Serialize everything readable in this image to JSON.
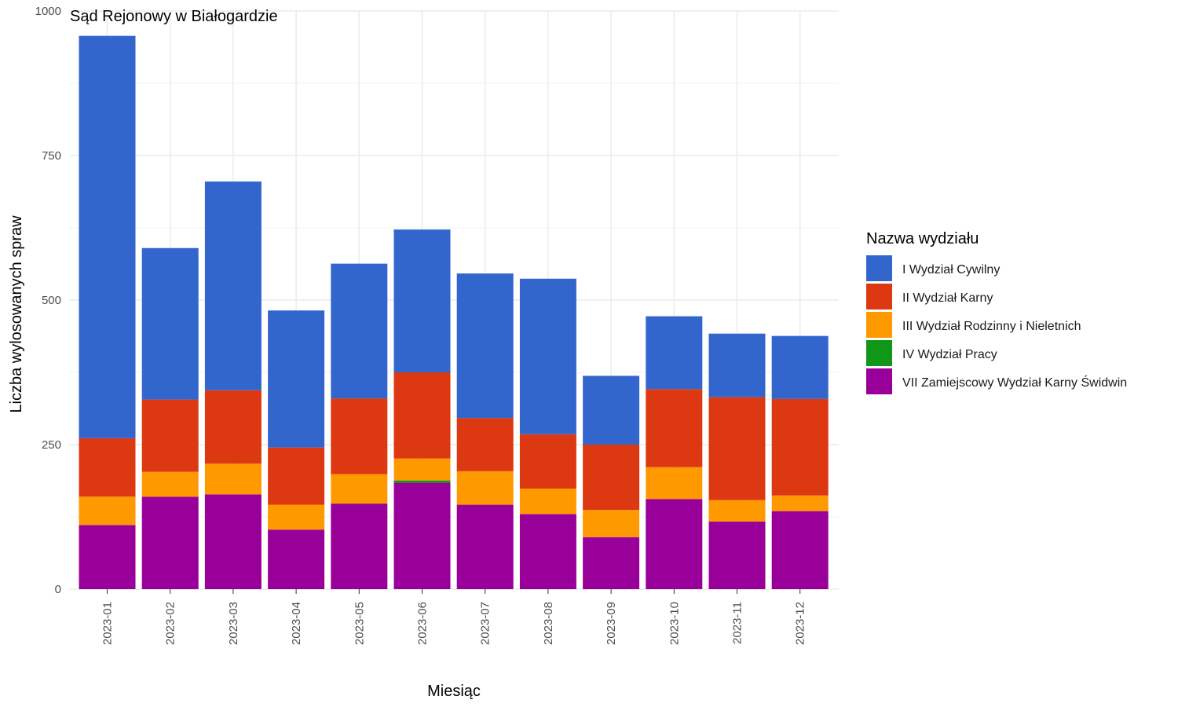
{
  "chart_data": {
    "type": "bar",
    "stacked": true,
    "title": "Sąd Rejonowy w Białogardzie",
    "xlabel": "Miesiąc",
    "ylabel": "Liczba wylosowanych spraw",
    "ylim": [
      0,
      1000
    ],
    "yticks": [
      0,
      250,
      500,
      750,
      1000
    ],
    "grid": true,
    "legend_title": "Nazwa wydziału",
    "legend_position": "right",
    "categories": [
      "2023-01",
      "2023-02",
      "2023-03",
      "2023-04",
      "2023-05",
      "2023-06",
      "2023-07",
      "2023-08",
      "2023-09",
      "2023-10",
      "2023-11",
      "2023-12"
    ],
    "series": [
      {
        "name": "VII Zamiejscowy Wydział Karny Świdwin",
        "color": "#990099",
        "values": [
          111,
          160,
          164,
          103,
          148,
          184,
          146,
          130,
          90,
          156,
          117,
          135
        ]
      },
      {
        "name": "IV Wydział Pracy",
        "color": "#109618",
        "values": [
          0,
          0,
          0,
          0,
          0,
          4,
          0,
          0,
          0,
          0,
          0,
          0
        ]
      },
      {
        "name": "III Wydział Rodzinny i Nieletnich",
        "color": "#FF9900",
        "values": [
          49,
          43,
          53,
          43,
          51,
          38,
          58,
          44,
          47,
          55,
          37,
          27
        ]
      },
      {
        "name": "II Wydział Karny",
        "color": "#DC3912",
        "values": [
          101,
          125,
          127,
          99,
          131,
          149,
          92,
          94,
          113,
          135,
          178,
          167
        ]
      },
      {
        "name": "I Wydział Cywilny",
        "color": "#3366CC",
        "values": [
          696,
          262,
          361,
          237,
          233,
          247,
          250,
          269,
          119,
          126,
          110,
          109
        ]
      }
    ]
  }
}
